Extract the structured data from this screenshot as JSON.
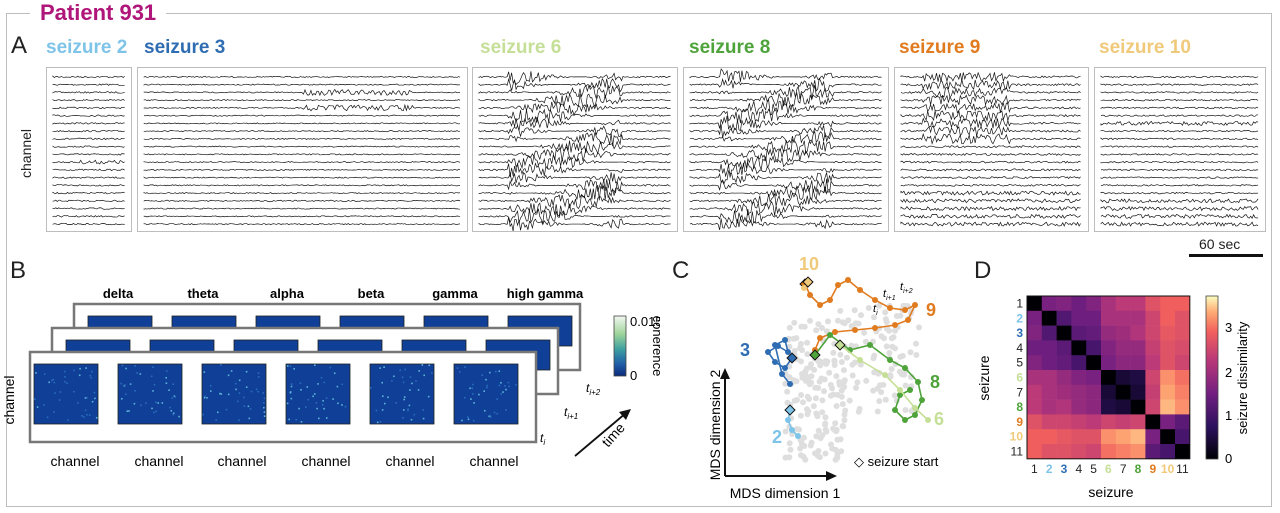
{
  "title": "Patient 931",
  "panels": {
    "a": "A",
    "b": "B",
    "c": "C",
    "d": "D"
  },
  "panel_a": {
    "ylabel": "channel",
    "scalebar": "60 sec",
    "seizures": [
      {
        "label": "seizure 2",
        "color": "#7ec3e8"
      },
      {
        "label": "seizure 3",
        "color": "#2f6db3"
      },
      {
        "label": "seizure 6",
        "color": "#c5df97"
      },
      {
        "label": "seizure 8",
        "color": "#4ea33a"
      },
      {
        "label": "seizure 9",
        "color": "#e07b1f"
      },
      {
        "label": "seizure 10",
        "color": "#f0c97a"
      }
    ]
  },
  "panel_b": {
    "bands": [
      "delta",
      "theta",
      "alpha",
      "beta",
      "gamma",
      "high gamma"
    ],
    "xlabel": "channel",
    "ylabel": "channel",
    "colorbar_max": "0.015",
    "colorbar_min": "0",
    "colorbar_label": "coherence",
    "t_labels": [
      "t",
      "i",
      "t",
      "i+1",
      "t",
      "i+2"
    ],
    "time_label": "time"
  },
  "panel_c": {
    "xlabel": "MDS dimension 1",
    "ylabel": "MDS dimension 2",
    "legend": "◇ seizure start",
    "traj_labels": [
      {
        "text": "10",
        "color": "#f0c97a"
      },
      {
        "text": "9",
        "color": "#e07b1f"
      },
      {
        "text": "3",
        "color": "#2f6db3"
      },
      {
        "text": "2",
        "color": "#7ec3e8"
      },
      {
        "text": "8",
        "color": "#4ea33a"
      },
      {
        "text": "6",
        "color": "#c5df97"
      }
    ],
    "t_labels": [
      "t",
      "i",
      "t",
      "i+1",
      "t",
      "i+2"
    ]
  },
  "panel_d": {
    "xlabel": "seizure",
    "ylabel": "seizure",
    "colorbar_label": "seizure dissimilarity",
    "colorbar_ticks": [
      "3",
      "2",
      "1",
      "0"
    ],
    "tick_labels": [
      "1",
      "2",
      "3",
      "4",
      "5",
      "6",
      "7",
      "8",
      "9",
      "10",
      "11"
    ],
    "tick_colors": [
      "#222",
      "#7ec3e8",
      "#2f6db3",
      "#222",
      "#222",
      "#c5df97",
      "#222",
      "#4ea33a",
      "#e07b1f",
      "#f0c97a",
      "#222"
    ],
    "matrix": [
      [
        0,
        1.5,
        1.6,
        1.4,
        1.6,
        2.0,
        2.2,
        2.2,
        2.6,
        2.8,
        2.8
      ],
      [
        1.5,
        0,
        1.1,
        1.4,
        1.4,
        2.0,
        2.0,
        2.0,
        2.4,
        2.8,
        2.6
      ],
      [
        1.6,
        1.1,
        0,
        1.2,
        1.3,
        1.8,
        1.9,
        2.1,
        2.4,
        2.7,
        2.6
      ],
      [
        1.4,
        1.4,
        1.2,
        0,
        1.0,
        1.6,
        1.8,
        1.8,
        2.3,
        2.6,
        2.5
      ],
      [
        1.6,
        1.4,
        1.3,
        1.0,
        0,
        1.5,
        1.7,
        1.7,
        2.2,
        2.6,
        2.4
      ],
      [
        2.0,
        2.0,
        1.8,
        1.6,
        1.5,
        0,
        0.4,
        0.5,
        2.4,
        3.1,
        2.9
      ],
      [
        2.2,
        2.0,
        1.9,
        1.8,
        1.7,
        0.4,
        0,
        0.4,
        2.3,
        3.2,
        3.0
      ],
      [
        2.2,
        2.0,
        2.1,
        1.8,
        1.7,
        0.5,
        0.4,
        0,
        2.4,
        3.3,
        3.1
      ],
      [
        2.6,
        2.4,
        2.4,
        2.3,
        2.2,
        2.4,
        2.3,
        2.4,
        0,
        1.5,
        1.2
      ],
      [
        2.8,
        2.8,
        2.7,
        2.6,
        2.6,
        3.1,
        3.2,
        3.3,
        1.5,
        0,
        1.0
      ],
      [
        2.8,
        2.6,
        2.6,
        2.5,
        2.4,
        2.9,
        3.0,
        3.1,
        1.2,
        1.0,
        0
      ]
    ]
  }
}
